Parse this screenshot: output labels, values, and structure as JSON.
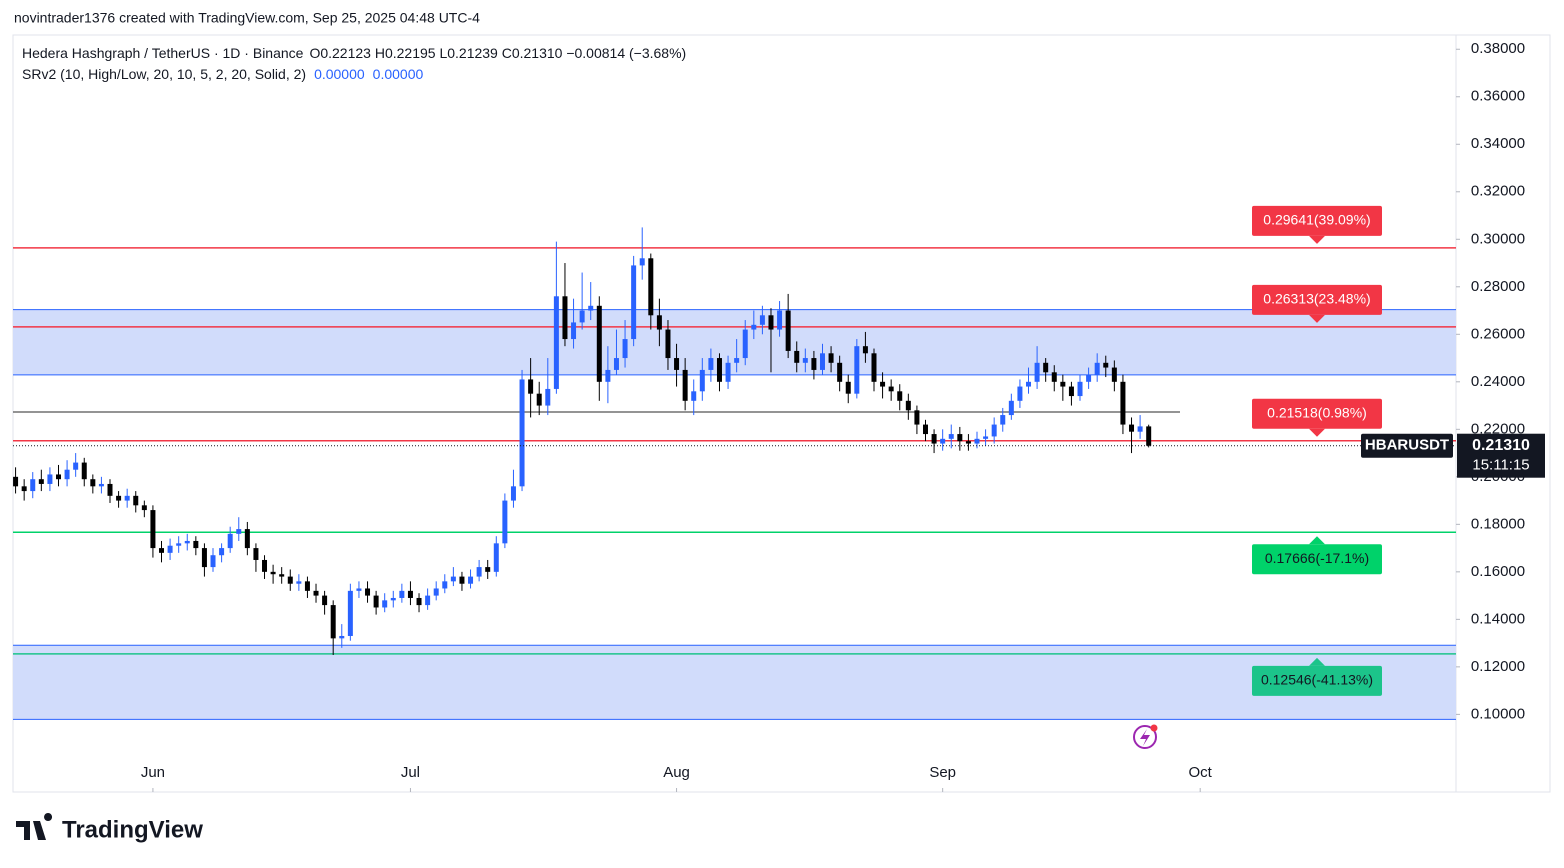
{
  "header": {
    "attribution": "novintrader1376 created with TradingView.com, Sep 25, 2025 04:48 UTC-4"
  },
  "footer": {
    "brand": "TradingView"
  },
  "chart_data": {
    "type": "candlestick",
    "symbol_line": "Hedera Hashgraph / TetherUS · 1D · Binance",
    "ohlc_line": "O0.22123 H0.22195 L0.21239 C0.21310 −0.00814 (−3.68%)",
    "indicator": "SRv2 (10, High/Low, 20, 10, 5, 2, 20, Solid, 2)",
    "indicator_values": [
      "0.00000",
      "0.00000"
    ],
    "up_color": "#2962ff",
    "down_color": "#000000",
    "ylim": [
      0.085,
      0.386
    ],
    "yticks": [
      {
        "value": 0.38,
        "label": "0.38000"
      },
      {
        "value": 0.36,
        "label": "0.36000"
      },
      {
        "value": 0.34,
        "label": "0.34000"
      },
      {
        "value": 0.32,
        "label": "0.32000"
      },
      {
        "value": 0.3,
        "label": "0.30000"
      },
      {
        "value": 0.28,
        "label": "0.28000"
      },
      {
        "value": 0.26,
        "label": "0.26000"
      },
      {
        "value": 0.24,
        "label": "0.24000"
      },
      {
        "value": 0.22,
        "label": "0.22000"
      },
      {
        "value": 0.2,
        "label": "0.20000"
      },
      {
        "value": 0.18,
        "label": "0.18000"
      },
      {
        "value": 0.16,
        "label": "0.16000"
      },
      {
        "value": 0.14,
        "label": "0.14000"
      },
      {
        "value": 0.12,
        "label": "0.12000"
      },
      {
        "value": 0.1,
        "label": "0.10000"
      }
    ],
    "xlim": [
      -0.3,
      167.8
    ],
    "xticks": [
      {
        "value": 16,
        "label": "Jun"
      },
      {
        "value": 46,
        "label": "Jul"
      },
      {
        "value": 77,
        "label": "Aug"
      },
      {
        "value": 108,
        "label": "Sep"
      },
      {
        "value": 138,
        "label": "Oct"
      }
    ],
    "zones": [
      {
        "from": 0.2429,
        "to": 0.2704,
        "color": "#d1dcfb"
      },
      {
        "from": 0.0979,
        "to": 0.1291,
        "color": "#d1dcfb"
      }
    ],
    "pivot_line": {
      "value": 0.2273,
      "color": "#555555"
    },
    "levels": [
      {
        "value": 0.29641,
        "label": "0.29641(39.09%)",
        "color": "#f23645"
      },
      {
        "value": 0.26313,
        "label": "0.26313(23.48%)",
        "color": "#f23645"
      },
      {
        "value": 0.21518,
        "label": "0.21518(0.98%)",
        "color": "#f23645"
      },
      {
        "value": 0.17666,
        "label": "0.17666(-17.1%)",
        "color": "#00d26a"
      },
      {
        "value": 0.12546,
        "label": "0.12546(-41.13%)",
        "color": "#1cc48a"
      }
    ],
    "symbol": "HBARUSDT",
    "last_price": {
      "value": 0.2131,
      "label": "0.21310"
    },
    "countdown": "15:11:15",
    "open": [
      0.2,
      0.196,
      0.194,
      0.199,
      0.197,
      0.201,
      0.199,
      0.203,
      0.206,
      0.199,
      0.196,
      0.197,
      0.192,
      0.19,
      0.192,
      0.188,
      0.186,
      0.17,
      0.168,
      0.171,
      0.172,
      0.173,
      0.17,
      0.162,
      0.167,
      0.17,
      0.176,
      0.178,
      0.17,
      0.165,
      0.16,
      0.159,
      0.158,
      0.155,
      0.156,
      0.152,
      0.15,
      0.146,
      0.132,
      0.133,
      0.152,
      0.153,
      0.15,
      0.145,
      0.148,
      0.149,
      0.152,
      0.149,
      0.146,
      0.15,
      0.153,
      0.156,
      0.158,
      0.155,
      0.158,
      0.162,
      0.16,
      0.172,
      0.19,
      0.196,
      0.241,
      0.235,
      0.23,
      0.237,
      0.276,
      0.258,
      0.265,
      0.27,
      0.272,
      0.24,
      0.245,
      0.25,
      0.258,
      0.289,
      0.292,
      0.268,
      0.262,
      0.25,
      0.245,
      0.232,
      0.236,
      0.245,
      0.25,
      0.24,
      0.248,
      0.25,
      0.262,
      0.264,
      0.268,
      0.262,
      0.27,
      0.253,
      0.248,
      0.25,
      0.245,
      0.252,
      0.248,
      0.24,
      0.235,
      0.255,
      0.252,
      0.24,
      0.238,
      0.236,
      0.232,
      0.228,
      0.222,
      0.218,
      0.214,
      0.216,
      0.218,
      0.215,
      0.214,
      0.216,
      0.217,
      0.222,
      0.226,
      0.232,
      0.238,
      0.24,
      0.248,
      0.244,
      0.24,
      0.238,
      0.234,
      0.24,
      0.243,
      0.248,
      0.246,
      0.24,
      0.222,
      0.219,
      0.22123
    ],
    "high": [
      0.204,
      0.199,
      0.202,
      0.203,
      0.204,
      0.205,
      0.207,
      0.21,
      0.208,
      0.201,
      0.2,
      0.199,
      0.194,
      0.195,
      0.194,
      0.19,
      0.188,
      0.173,
      0.174,
      0.175,
      0.176,
      0.175,
      0.172,
      0.17,
      0.172,
      0.179,
      0.183,
      0.181,
      0.172,
      0.167,
      0.163,
      0.162,
      0.161,
      0.159,
      0.158,
      0.155,
      0.152,
      0.148,
      0.138,
      0.155,
      0.156,
      0.156,
      0.152,
      0.151,
      0.152,
      0.155,
      0.156,
      0.151,
      0.153,
      0.156,
      0.159,
      0.162,
      0.16,
      0.161,
      0.165,
      0.165,
      0.175,
      0.193,
      0.203,
      0.245,
      0.25,
      0.24,
      0.25,
      0.299,
      0.29,
      0.275,
      0.286,
      0.282,
      0.276,
      0.255,
      0.262,
      0.266,
      0.293,
      0.305,
      0.294,
      0.275,
      0.266,
      0.256,
      0.25,
      0.241,
      0.25,
      0.254,
      0.252,
      0.251,
      0.258,
      0.266,
      0.27,
      0.272,
      0.271,
      0.274,
      0.277,
      0.257,
      0.254,
      0.253,
      0.256,
      0.255,
      0.251,
      0.243,
      0.258,
      0.261,
      0.254,
      0.244,
      0.241,
      0.239,
      0.235,
      0.23,
      0.224,
      0.22,
      0.22,
      0.222,
      0.221,
      0.218,
      0.219,
      0.22,
      0.225,
      0.229,
      0.235,
      0.241,
      0.246,
      0.255,
      0.25,
      0.247,
      0.243,
      0.24,
      0.243,
      0.246,
      0.252,
      0.251,
      0.249,
      0.243,
      0.225,
      0.226,
      0.22195
    ],
    "low": [
      0.193,
      0.19,
      0.191,
      0.194,
      0.194,
      0.196,
      0.196,
      0.2,
      0.196,
      0.193,
      0.193,
      0.189,
      0.187,
      0.187,
      0.185,
      0.183,
      0.166,
      0.164,
      0.165,
      0.168,
      0.169,
      0.167,
      0.158,
      0.16,
      0.164,
      0.168,
      0.173,
      0.167,
      0.16,
      0.157,
      0.155,
      0.155,
      0.152,
      0.152,
      0.149,
      0.147,
      0.142,
      0.125,
      0.128,
      0.131,
      0.149,
      0.147,
      0.142,
      0.143,
      0.145,
      0.147,
      0.146,
      0.143,
      0.144,
      0.148,
      0.151,
      0.154,
      0.152,
      0.153,
      0.156,
      0.157,
      0.158,
      0.17,
      0.187,
      0.194,
      0.225,
      0.226,
      0.226,
      0.235,
      0.255,
      0.254,
      0.262,
      0.266,
      0.232,
      0.231,
      0.243,
      0.246,
      0.255,
      0.283,
      0.262,
      0.255,
      0.245,
      0.238,
      0.228,
      0.226,
      0.232,
      0.24,
      0.236,
      0.237,
      0.244,
      0.247,
      0.258,
      0.26,
      0.244,
      0.259,
      0.25,
      0.244,
      0.244,
      0.241,
      0.243,
      0.244,
      0.236,
      0.231,
      0.233,
      0.248,
      0.236,
      0.233,
      0.232,
      0.228,
      0.224,
      0.218,
      0.215,
      0.21,
      0.211,
      0.212,
      0.211,
      0.211,
      0.212,
      0.213,
      0.214,
      0.219,
      0.224,
      0.229,
      0.235,
      0.237,
      0.24,
      0.236,
      0.232,
      0.23,
      0.232,
      0.237,
      0.24,
      0.242,
      0.236,
      0.218,
      0.21,
      0.216,
      0.21239
    ],
    "close": [
      0.196,
      0.194,
      0.199,
      0.197,
      0.201,
      0.199,
      0.203,
      0.206,
      0.199,
      0.196,
      0.197,
      0.192,
      0.19,
      0.192,
      0.188,
      0.186,
      0.17,
      0.168,
      0.171,
      0.172,
      0.173,
      0.17,
      0.162,
      0.167,
      0.17,
      0.176,
      0.178,
      0.17,
      0.165,
      0.16,
      0.159,
      0.158,
      0.155,
      0.156,
      0.152,
      0.15,
      0.146,
      0.132,
      0.133,
      0.152,
      0.153,
      0.15,
      0.145,
      0.148,
      0.149,
      0.152,
      0.149,
      0.146,
      0.15,
      0.153,
      0.156,
      0.158,
      0.155,
      0.158,
      0.162,
      0.16,
      0.172,
      0.19,
      0.196,
      0.241,
      0.235,
      0.23,
      0.237,
      0.276,
      0.258,
      0.265,
      0.27,
      0.272,
      0.24,
      0.245,
      0.25,
      0.258,
      0.289,
      0.292,
      0.268,
      0.262,
      0.25,
      0.245,
      0.232,
      0.236,
      0.245,
      0.25,
      0.24,
      0.248,
      0.25,
      0.262,
      0.264,
      0.268,
      0.262,
      0.27,
      0.253,
      0.248,
      0.25,
      0.245,
      0.252,
      0.248,
      0.24,
      0.235,
      0.255,
      0.252,
      0.24,
      0.238,
      0.236,
      0.232,
      0.228,
      0.222,
      0.218,
      0.214,
      0.216,
      0.218,
      0.215,
      0.214,
      0.216,
      0.217,
      0.222,
      0.226,
      0.232,
      0.238,
      0.24,
      0.248,
      0.244,
      0.24,
      0.238,
      0.234,
      0.24,
      0.243,
      0.248,
      0.246,
      0.24,
      0.222,
      0.219,
      0.22123,
      0.2131
    ]
  }
}
